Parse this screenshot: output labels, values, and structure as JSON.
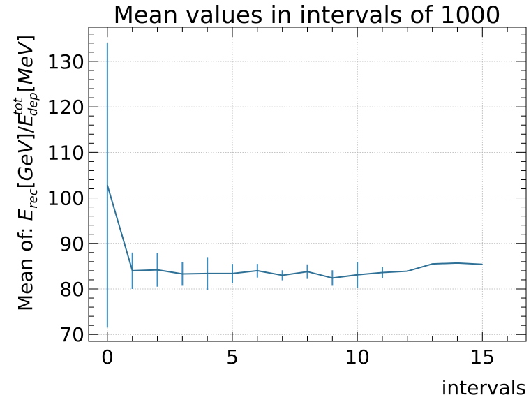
{
  "chart_data": {
    "type": "line",
    "title": "Mean values in intervals of 1000",
    "xlabel": "intervals",
    "ylabel": {
      "prefix": "Mean of: ",
      "formula": "E_rec[GeV]/E_dep^tot[MeV]"
    },
    "xlim": [
      -0.75,
      16.75
    ],
    "ylim": [
      68.5,
      137.5
    ],
    "xticks": [
      0,
      5,
      10,
      15
    ],
    "yticks": [
      70,
      80,
      90,
      100,
      110,
      120,
      130
    ],
    "grid": true,
    "color": "#2f7196",
    "series": [
      {
        "x": [
          0,
          1,
          2,
          3,
          4,
          5,
          6,
          7,
          8,
          9,
          10,
          11,
          12,
          13,
          14,
          15
        ],
        "y": [
          102.8,
          84.0,
          84.2,
          83.3,
          83.4,
          83.4,
          84.0,
          83.0,
          83.8,
          82.4,
          83.1,
          83.6,
          83.9,
          85.5,
          85.7,
          85.4
        ],
        "yerr": [
          31.3,
          4.0,
          3.7,
          2.6,
          3.6,
          2.1,
          1.5,
          1.1,
          1.6,
          1.7,
          2.8,
          1.2,
          0,
          0,
          0,
          0
        ]
      }
    ]
  }
}
